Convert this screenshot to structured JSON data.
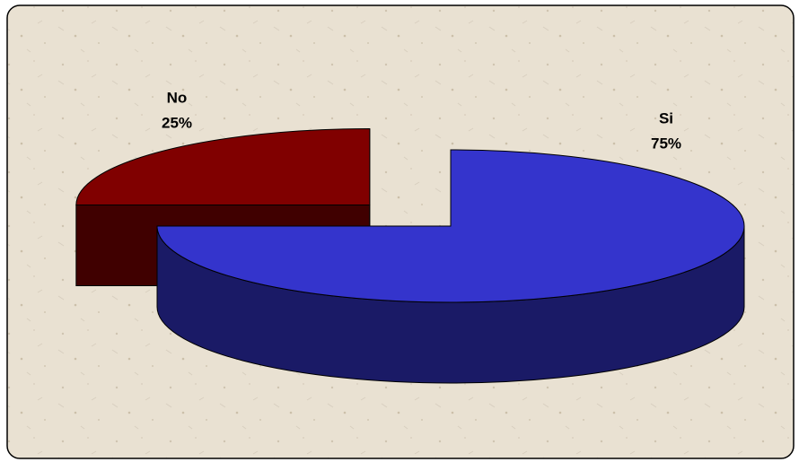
{
  "chart_data": {
    "type": "pie",
    "categories": [
      "Si",
      "No"
    ],
    "values": [
      75,
      25
    ],
    "value_labels": [
      "75%",
      "25%"
    ],
    "colors": [
      "#3434cc",
      "#800000"
    ]
  }
}
